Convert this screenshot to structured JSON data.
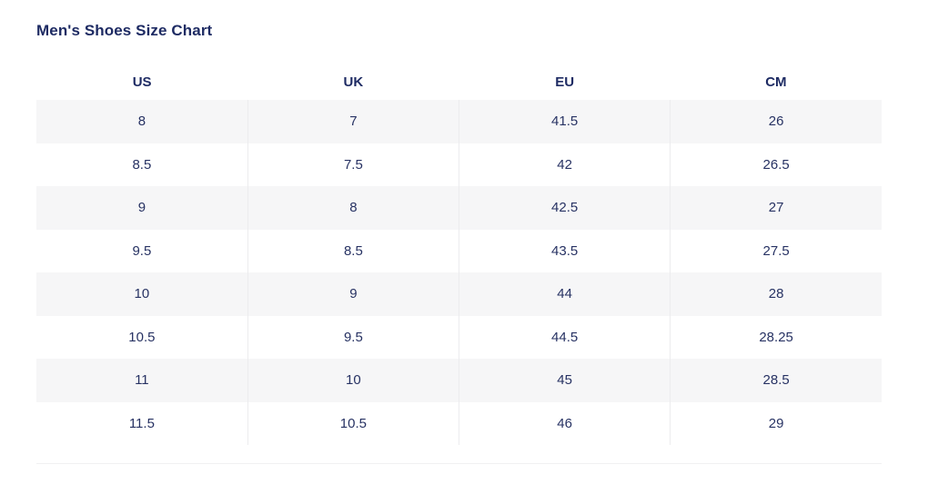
{
  "page": {
    "title": "Men's Shoes Size Chart"
  },
  "table": {
    "columns": [
      "US",
      "UK",
      "EU",
      "CM"
    ],
    "rows": [
      [
        "8",
        "7",
        "41.5",
        "26"
      ],
      [
        "8.5",
        "7.5",
        "42",
        "26.5"
      ],
      [
        "9",
        "8",
        "42.5",
        "27"
      ],
      [
        "9.5",
        "8.5",
        "43.5",
        "27.5"
      ],
      [
        "10",
        "9",
        "44",
        "28"
      ],
      [
        "10.5",
        "9.5",
        "44.5",
        "28.25"
      ],
      [
        "11",
        "10",
        "45",
        "28.5"
      ],
      [
        "11.5",
        "10.5",
        "46",
        "29"
      ]
    ]
  },
  "colors": {
    "title_text": "#1e2b63",
    "cell_text": "#273263",
    "alt_row_bg": "#f6f6f7",
    "column_divider": "#ececee",
    "bottom_divider": "#f1f1f2",
    "page_bg": "#ffffff"
  },
  "chart_data": {
    "type": "table",
    "title": "Men's Shoes Size Chart",
    "columns": [
      "US",
      "UK",
      "EU",
      "CM"
    ],
    "rows": [
      [
        8,
        7,
        41.5,
        26
      ],
      [
        8.5,
        7.5,
        42,
        26.5
      ],
      [
        9,
        8,
        42.5,
        27
      ],
      [
        9.5,
        8.5,
        43.5,
        27.5
      ],
      [
        10,
        9,
        44,
        28
      ],
      [
        10.5,
        9.5,
        44.5,
        28.25
      ],
      [
        11,
        10,
        45,
        28.5
      ],
      [
        11.5,
        10.5,
        46,
        29
      ]
    ],
    "layout": {
      "header_position": "top",
      "zebra_striping": true,
      "striped_rows": "odd",
      "text_align": "center",
      "grid": "vertical-dividers-only"
    }
  }
}
